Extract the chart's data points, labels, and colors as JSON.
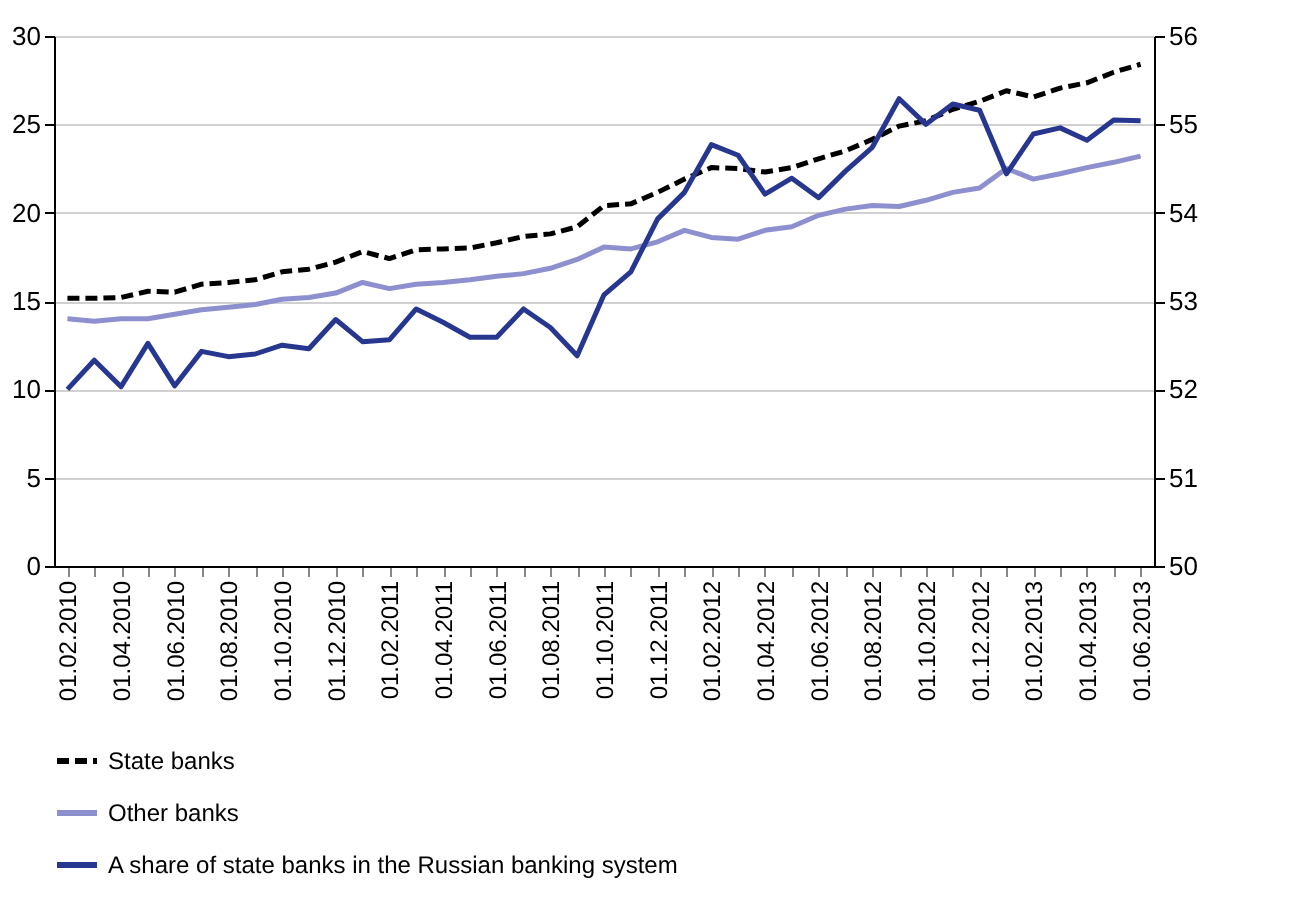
{
  "chart_data": {
    "type": "line",
    "categories": [
      "01.02.2010",
      null,
      "01.04.2010",
      null,
      "01.06.2010",
      null,
      "01.08.2010",
      null,
      "01.10.2010",
      null,
      "01.12.2010",
      null,
      "01.02.2011",
      null,
      "01.04.2011",
      null,
      "01.06.2011",
      null,
      "01.08.2011",
      null,
      "01.10.2011",
      null,
      "01.12.2011",
      null,
      "01.02.2012",
      null,
      "01.04.2012",
      null,
      "01.06.2012",
      null,
      "01.08.2012",
      null,
      "01.10.2012",
      null,
      "01.12.2012",
      null,
      "01.02.2013",
      null,
      "01.04.2013",
      null,
      "01.06.2013"
    ],
    "series": [
      {
        "name": "State banks",
        "color": "#000000",
        "line_style": "dashed",
        "values": [
          15.15,
          15.15,
          15.2,
          15.55,
          15.5,
          15.95,
          16.05,
          16.2,
          16.65,
          16.8,
          17.2,
          17.8,
          17.4,
          17.9,
          17.95,
          18.0,
          18.3,
          18.65,
          18.8,
          19.2,
          20.4,
          20.5,
          21.15,
          21.9,
          22.55,
          22.5,
          22.3,
          22.55,
          23.05,
          23.5,
          24.15,
          24.9,
          25.2,
          25.85,
          26.3,
          26.9,
          26.55,
          27.05,
          27.35,
          27.95,
          28.4
        ]
      },
      {
        "name": "Other banks",
        "color": "#8e8fce",
        "line_style": "solid",
        "values": [
          14.0,
          13.85,
          14.0,
          14.0,
          14.25,
          14.5,
          14.65,
          14.8,
          15.1,
          15.2,
          15.45,
          16.05,
          15.7,
          15.95,
          16.05,
          16.2,
          16.4,
          16.55,
          16.85,
          17.35,
          18.05,
          17.95,
          18.35,
          19.0,
          18.6,
          18.5,
          19.0,
          19.2,
          19.85,
          20.2,
          20.4,
          20.35,
          20.7,
          21.15,
          21.4,
          22.5,
          21.9,
          22.2,
          22.55,
          22.85,
          23.2
        ]
      },
      {
        "name": "A share of state banks in the Russian banking system",
        "color": "#27378f",
        "line_style": "solid",
        "axis": "y2",
        "values": [
          52.0,
          52.33,
          52.03,
          52.52,
          52.04,
          52.43,
          52.37,
          52.4,
          52.5,
          52.46,
          52.79,
          52.54,
          52.56,
          52.91,
          52.76,
          52.59,
          52.59,
          52.91,
          52.7,
          52.38,
          53.07,
          53.33,
          53.93,
          54.23,
          54.77,
          54.65,
          54.21,
          54.39,
          54.17,
          54.47,
          54.74,
          55.29,
          55.0,
          55.23,
          55.16,
          54.44,
          54.89,
          54.96,
          54.82,
          55.05,
          55.04
        ]
      }
    ],
    "ylim": [
      0,
      30
    ],
    "yticks": [
      0,
      5,
      10,
      15,
      20,
      25,
      30
    ],
    "y2lim": [
      50,
      56
    ],
    "y2ticks": [
      50,
      51,
      52,
      53,
      54,
      55,
      56
    ],
    "grid": "y",
    "legend": "bottom"
  }
}
